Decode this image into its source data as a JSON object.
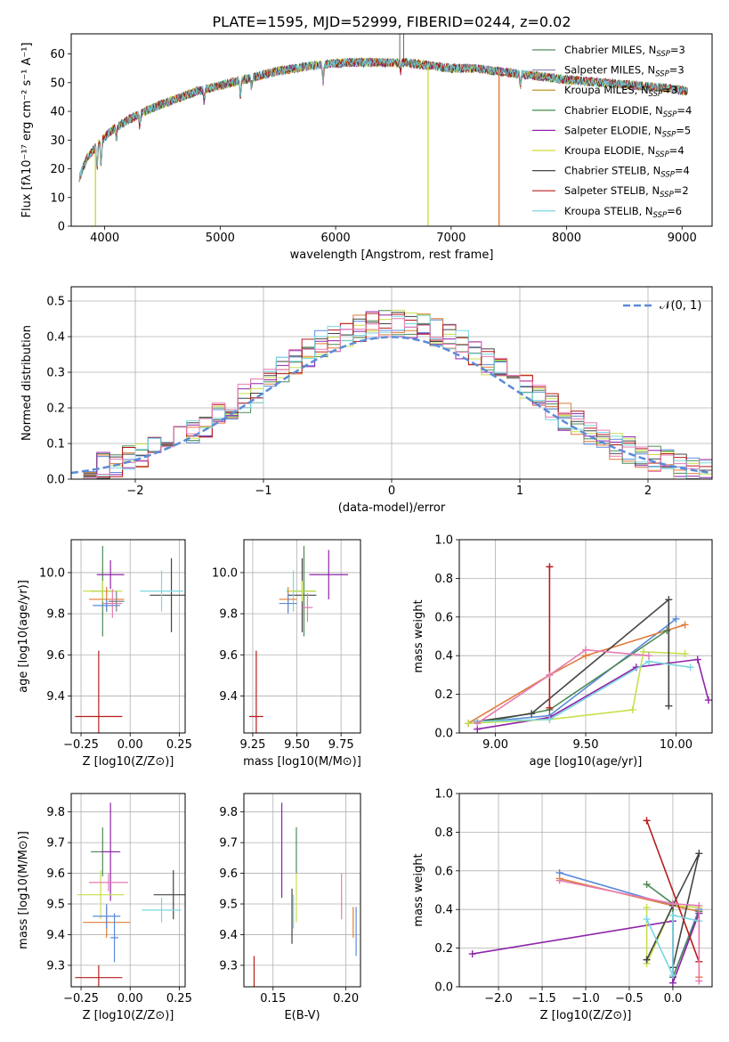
{
  "figure": {
    "title": "PLATE=1595, MJD=52999, FIBERID=0244, z=0.02"
  },
  "colors": {
    "cm": "#5B8A5B",
    "sm": "#8A8AB5",
    "km": "#B8860B",
    "ce": "#2E7D32",
    "se": "#8E24AA",
    "ke": "#CDDC39",
    "cs": "#444444",
    "ss": "#B71C1C",
    "ks": "#6FD0DC",
    "gauss": "#5B8BD9",
    "p_blue": "#5B8BD9",
    "p_orange": "#E07B39",
    "p_green": "#4E8A57",
    "p_purple": "#8E24AA",
    "p_lime": "#C6E04C",
    "p_dark": "#444444",
    "p_red": "#B71C1C",
    "p_cyan": "#7AD7E0",
    "p_pink": "#E57BB3",
    "p_gray": "#7F7F7F"
  },
  "chart_data": [
    {
      "id": "spectrum",
      "type": "line",
      "xlabel": "wavelength [Angstrom, rest frame]",
      "ylabel": "Flux [fλ10⁻¹⁷ erg cm⁻² s⁻¹ A⁻¹]",
      "xlim": [
        3710,
        9260
      ],
      "ylim": [
        0,
        67
      ],
      "xticks": [
        4000,
        5000,
        6000,
        7000,
        8000,
        9000
      ],
      "yticks": [
        0,
        10,
        20,
        30,
        40,
        50,
        60
      ],
      "continuum": [
        [
          3780,
          17
        ],
        [
          3850,
          24
        ],
        [
          3950,
          29
        ],
        [
          4050,
          33
        ],
        [
          4200,
          37
        ],
        [
          4400,
          41
        ],
        [
          4600,
          44
        ],
        [
          4800,
          47
        ],
        [
          5000,
          49
        ],
        [
          5200,
          51
        ],
        [
          5500,
          54
        ],
        [
          5800,
          56
        ],
        [
          6100,
          57
        ],
        [
          6400,
          57
        ],
        [
          6600,
          57
        ],
        [
          6800,
          56
        ],
        [
          7000,
          55
        ],
        [
          7200,
          55
        ],
        [
          7400,
          54
        ],
        [
          7600,
          53
        ],
        [
          7800,
          52
        ],
        [
          8000,
          51
        ],
        [
          8300,
          50
        ],
        [
          8600,
          49
        ],
        [
          8900,
          48
        ],
        [
          9050,
          47
        ]
      ],
      "absorption_lines": [
        [
          3934,
          8
        ],
        [
          3969,
          9
        ],
        [
          4101,
          4
        ],
        [
          4305,
          5
        ],
        [
          4861,
          4
        ],
        [
          5175,
          6
        ],
        [
          5270,
          3
        ],
        [
          5892,
          6
        ],
        [
          6563,
          3
        ],
        [
          7600,
          4
        ]
      ],
      "dropouts": [
        {
          "model": "Kroupa ELODIE",
          "x": 3920,
          "color_key": "ke"
        },
        {
          "model": "Kroupa ELODIE",
          "x": 6800,
          "color_key": "ke"
        },
        {
          "model": "Salpeter STELIB",
          "x": 7415,
          "color_key": "p_orange"
        }
      ],
      "spikes": [
        [
          6555,
          67
        ],
        [
          6590,
          67
        ]
      ],
      "series": [
        {
          "name": "Chabrier MILES, N_SSP=3",
          "label_main": "Chabrier MILES, N",
          "label_sub": "SSP",
          "label_tail": "=3",
          "color_key": "cm"
        },
        {
          "name": "Salpeter MILES, N_SSP=3",
          "label_main": "Salpeter MILES, N",
          "label_sub": "SSP",
          "label_tail": "=3",
          "color_key": "sm"
        },
        {
          "name": "Kroupa MILES, N_SSP=3",
          "label_main": "Kroupa MILES, N",
          "label_sub": "SSP",
          "label_tail": "=3",
          "color_key": "km"
        },
        {
          "name": "Chabrier ELODIE, N_SSP=4",
          "label_main": "Chabrier ELODIE, N",
          "label_sub": "SSP",
          "label_tail": "=4",
          "color_key": "ce"
        },
        {
          "name": "Salpeter ELODIE, N_SSP=5",
          "label_main": "Salpeter ELODIE, N",
          "label_sub": "SSP",
          "label_tail": "=5",
          "color_key": "se"
        },
        {
          "name": "Kroupa ELODIE, N_SSP=4",
          "label_main": "Kroupa ELODIE, N",
          "label_sub": "SSP",
          "label_tail": "=4",
          "color_key": "ke"
        },
        {
          "name": "Chabrier STELIB, N_SSP=4",
          "label_main": "Chabrier STELIB, N",
          "label_sub": "SSP",
          "label_tail": "=4",
          "color_key": "cs"
        },
        {
          "name": "Salpeter STELIB, N_SSP=2",
          "label_main": "Salpeter STELIB, N",
          "label_sub": "SSP",
          "label_tail": "=2",
          "color_key": "ss"
        },
        {
          "name": "Kroupa STELIB, N_SSP=6",
          "label_main": "Kroupa STELIB, N",
          "label_sub": "SSP",
          "label_tail": "=6",
          "color_key": "ks"
        }
      ]
    },
    {
      "id": "residuals",
      "type": "bar",
      "xlabel": "(data-model)/error",
      "ylabel": "Normed distribution",
      "xlim": [
        -2.5,
        2.5
      ],
      "ylim": [
        0,
        0.54
      ],
      "xticks": [
        -2,
        -1,
        0,
        1,
        2
      ],
      "yticks": [
        0.0,
        0.1,
        0.2,
        0.3,
        0.4,
        0.5
      ],
      "bin_width": 0.1,
      "gaussian_legend": "𝒩(0, 1)",
      "hist_colors": [
        "p_blue",
        "p_orange",
        "p_green",
        "p_purple",
        "p_lime",
        "p_dark",
        "p_red",
        "p_cyan",
        "p_pink"
      ]
    },
    {
      "id": "age_vs_Z",
      "type": "scatter",
      "xlabel": "Z [log10(Z/Z⊙)]",
      "ylabel": "age  [log10(age/yr)]",
      "xlim": [
        -0.3,
        0.28
      ],
      "ylim": [
        9.22,
        10.16
      ],
      "xticks": [
        -0.25,
        0.0,
        0.25
      ],
      "yticks": [
        9.4,
        9.6,
        9.8,
        10.0
      ],
      "errorbars": [
        {
          "x": -0.16,
          "y": 9.3,
          "xerr": 0.12,
          "yerr": 0.32,
          "color_key": "p_red"
        },
        {
          "x": 0.21,
          "y": 9.89,
          "xerr": 0.11,
          "yerr": 0.18,
          "color_key": "p_dark"
        },
        {
          "x": 0.16,
          "y": 9.91,
          "xerr": 0.11,
          "yerr": 0.1,
          "color_key": "p_cyan"
        },
        {
          "x": -0.14,
          "y": 9.91,
          "xerr": 0.06,
          "yerr": 0.22,
          "color_key": "p_green"
        },
        {
          "x": -0.1,
          "y": 9.99,
          "xerr": 0.07,
          "yerr": 0.07,
          "color_key": "p_purple"
        },
        {
          "x": -0.14,
          "y": 9.91,
          "xerr": 0.1,
          "yerr": 0.05,
          "color_key": "p_lime"
        },
        {
          "x": -0.12,
          "y": 9.87,
          "xerr": 0.09,
          "yerr": 0.06,
          "color_key": "p_orange"
        },
        {
          "x": -0.09,
          "y": 9.85,
          "xerr": 0.05,
          "yerr": 0.07,
          "color_key": "p_pink"
        },
        {
          "x": -0.12,
          "y": 9.84,
          "xerr": 0.07,
          "yerr": 0.03,
          "color_key": "p_blue"
        },
        {
          "x": -0.07,
          "y": 9.86,
          "xerr": 0.04,
          "yerr": 0.05,
          "color_key": "p_gray"
        }
      ]
    },
    {
      "id": "age_vs_mass",
      "type": "scatter",
      "xlabel": "mass [log10(M/M⊙)]",
      "ylabel": "",
      "xlim": [
        9.2,
        9.86
      ],
      "ylim": [
        9.22,
        10.16
      ],
      "xticks": [
        9.25,
        9.5,
        9.75
      ],
      "yticks": [
        9.4,
        9.6,
        9.8,
        10.0
      ],
      "errorbars": [
        {
          "x": 9.27,
          "y": 9.3,
          "xerr": 0.04,
          "yerr": 0.32,
          "color_key": "p_red"
        },
        {
          "x": 9.53,
          "y": 9.89,
          "xerr": 0.08,
          "yerr": 0.18,
          "color_key": "p_dark"
        },
        {
          "x": 9.48,
          "y": 9.91,
          "xerr": 0.04,
          "yerr": 0.1,
          "color_key": "p_cyan"
        },
        {
          "x": 9.54,
          "y": 9.91,
          "xerr": 0.06,
          "yerr": 0.22,
          "color_key": "p_green"
        },
        {
          "x": 9.68,
          "y": 9.99,
          "xerr": 0.11,
          "yerr": 0.12,
          "color_key": "p_purple"
        },
        {
          "x": 9.53,
          "y": 9.91,
          "xerr": 0.08,
          "yerr": 0.05,
          "color_key": "p_lime"
        },
        {
          "x": 9.45,
          "y": 9.87,
          "xerr": 0.05,
          "yerr": 0.06,
          "color_key": "p_orange"
        },
        {
          "x": 9.56,
          "y": 9.83,
          "xerr": 0.03,
          "yerr": 0.07,
          "color_key": "p_pink"
        },
        {
          "x": 9.45,
          "y": 9.85,
          "xerr": 0.05,
          "yerr": 0.05,
          "color_key": "p_blue"
        }
      ]
    },
    {
      "id": "weight_vs_age",
      "type": "line",
      "xlabel": "age  [log10(age/yr)]",
      "ylabel": "mass weight",
      "xlim": [
        8.8,
        10.2
      ],
      "ylim": [
        0,
        1
      ],
      "xticks": [
        9.0,
        9.5,
        10.0
      ],
      "yticks": [
        0.0,
        0.2,
        0.4,
        0.6,
        0.8,
        1.0
      ],
      "series": [
        {
          "color_key": "p_blue",
          "points": [
            [
              8.85,
              0.05
            ],
            [
              9.3,
              0.09
            ],
            [
              10.0,
              0.59
            ]
          ]
        },
        {
          "color_key": "p_orange",
          "points": [
            [
              8.85,
              0.05
            ],
            [
              9.3,
              0.3
            ],
            [
              9.5,
              0.4
            ],
            [
              10.05,
              0.56
            ]
          ]
        },
        {
          "color_key": "p_green",
          "points": [
            [
              8.9,
              0.05
            ],
            [
              9.3,
              0.12
            ],
            [
              9.95,
              0.53
            ]
          ]
        },
        {
          "color_key": "p_purple",
          "points": [
            [
              8.9,
              0.02
            ],
            [
              9.3,
              0.08
            ],
            [
              9.78,
              0.34
            ],
            [
              10.12,
              0.38
            ],
            [
              10.18,
              0.17
            ]
          ]
        },
        {
          "color_key": "p_lime",
          "points": [
            [
              8.85,
              0.05
            ],
            [
              9.3,
              0.07
            ],
            [
              9.76,
              0.12
            ],
            [
              9.82,
              0.42
            ],
            [
              10.05,
              0.41
            ]
          ]
        },
        {
          "color_key": "p_dark",
          "points": [
            [
              8.9,
              0.06
            ],
            [
              9.2,
              0.1
            ],
            [
              9.96,
              0.69
            ],
            [
              9.96,
              0.14
            ]
          ]
        },
        {
          "color_key": "p_red",
          "points": [
            [
              9.3,
              0.86
            ],
            [
              9.3,
              0.13
            ]
          ]
        },
        {
          "color_key": "p_cyan",
          "points": [
            [
              8.9,
              0.06
            ],
            [
              9.3,
              0.07
            ],
            [
              9.85,
              0.37
            ],
            [
              10.08,
              0.34
            ]
          ]
        },
        {
          "color_key": "p_pink",
          "points": [
            [
              8.9,
              0.05
            ],
            [
              9.3,
              0.3
            ],
            [
              9.5,
              0.43
            ],
            [
              9.85,
              0.4
            ]
          ]
        }
      ]
    },
    {
      "id": "mass_vs_Z",
      "type": "scatter",
      "xlabel": "Z [log10(Z/Z⊙)]",
      "ylabel": "mass [log10(M/M⊙)]",
      "xlim": [
        -0.3,
        0.28
      ],
      "ylim": [
        9.23,
        9.86
      ],
      "xticks": [
        -0.25,
        0.0,
        0.25
      ],
      "yticks": [
        9.3,
        9.4,
        9.5,
        9.6,
        9.7,
        9.8
      ],
      "errorbars": [
        {
          "x": -0.16,
          "y": 9.26,
          "xerr": 0.12,
          "yerr": 0.04,
          "color_key": "p_red"
        },
        {
          "x": 0.22,
          "y": 9.53,
          "xerr": 0.1,
          "yerr": 0.08,
          "color_key": "p_dark"
        },
        {
          "x": 0.16,
          "y": 9.48,
          "xerr": 0.1,
          "yerr": 0.04,
          "color_key": "p_cyan"
        },
        {
          "x": -0.14,
          "y": 9.67,
          "xerr": 0.06,
          "yerr": 0.08,
          "color_key": "p_green"
        },
        {
          "x": -0.1,
          "y": 9.67,
          "xerr": 0.05,
          "yerr": 0.16,
          "color_key": "p_purple"
        },
        {
          "x": -0.15,
          "y": 9.53,
          "xerr": 0.12,
          "yerr": 0.08,
          "color_key": "p_lime"
        },
        {
          "x": -0.12,
          "y": 9.44,
          "xerr": 0.12,
          "yerr": 0.05,
          "color_key": "p_orange"
        },
        {
          "x": -0.11,
          "y": 9.57,
          "xerr": 0.1,
          "yerr": 0.03,
          "color_key": "p_pink"
        },
        {
          "x": -0.12,
          "y": 9.46,
          "xerr": 0.07,
          "yerr": 0.04,
          "color_key": "p_blue"
        },
        {
          "x": -0.08,
          "y": 9.39,
          "xerr": 0.02,
          "yerr": 0.08,
          "color_key": "p_blue"
        }
      ]
    },
    {
      "id": "mass_vs_ebv",
      "type": "scatter",
      "xlabel": "E(B-V)",
      "ylabel": "",
      "xlim": [
        0.13,
        0.21
      ],
      "ylim": [
        9.23,
        9.86
      ],
      "xticks": [
        0.15,
        0.2
      ],
      "yticks": [
        9.3,
        9.4,
        9.5,
        9.6,
        9.7,
        9.8
      ],
      "vlines": [
        {
          "x": 0.137,
          "y0": 9.23,
          "y1": 9.33,
          "color_key": "p_red"
        },
        {
          "x": 0.156,
          "y0": 9.52,
          "y1": 9.83,
          "color_key": "p_purple"
        },
        {
          "x": 0.163,
          "y0": 9.37,
          "y1": 9.55,
          "color_key": "p_dark"
        },
        {
          "x": 0.164,
          "y0": 9.42,
          "y1": 9.53,
          "color_key": "p_cyan"
        },
        {
          "x": 0.166,
          "y0": 9.6,
          "y1": 9.75,
          "color_key": "p_green"
        },
        {
          "x": 0.166,
          "y0": 9.44,
          "y1": 9.6,
          "color_key": "p_lime"
        },
        {
          "x": 0.197,
          "y0": 9.45,
          "y1": 9.6,
          "color_key": "p_pink"
        },
        {
          "x": 0.205,
          "y0": 9.39,
          "y1": 9.49,
          "color_key": "p_orange"
        },
        {
          "x": 0.207,
          "y0": 9.33,
          "y1": 9.49,
          "color_key": "p_blue"
        }
      ]
    },
    {
      "id": "weight_vs_Z",
      "type": "line",
      "xlabel": "Z [log10(Z/Z⊙)]",
      "ylabel": "mass weight",
      "xlim": [
        -2.45,
        0.45
      ],
      "ylim": [
        0,
        1
      ],
      "xticks": [
        -2.0,
        -1.5,
        -1.0,
        -0.5,
        0.0
      ],
      "yticks": [
        0.0,
        0.2,
        0.4,
        0.6,
        0.8,
        1.0
      ],
      "series": [
        {
          "color_key": "p_blue",
          "points": [
            [
              -1.3,
              0.59
            ],
            [
              0.0,
              0.42
            ],
            [
              0.0,
              0.05
            ],
            [
              0.3,
              0.4
            ]
          ]
        },
        {
          "color_key": "p_orange",
          "points": [
            [
              -1.3,
              0.56
            ],
            [
              0.0,
              0.42
            ],
            [
              0.3,
              0.39
            ],
            [
              0.3,
              0.05
            ]
          ]
        },
        {
          "color_key": "p_green",
          "points": [
            [
              -0.3,
              0.53
            ],
            [
              0.0,
              0.43
            ],
            [
              0.0,
              0.05
            ],
            [
              0.3,
              0.39
            ]
          ]
        },
        {
          "color_key": "p_purple",
          "points": [
            [
              -2.3,
              0.17
            ],
            [
              0.0,
              0.34
            ],
            [
              0.0,
              0.02
            ],
            [
              0.3,
              0.38
            ]
          ]
        },
        {
          "color_key": "p_lime",
          "points": [
            [
              -0.3,
              0.41
            ],
            [
              -0.3,
              0.12
            ],
            [
              0.0,
              0.42
            ],
            [
              0.3,
              0.41
            ]
          ]
        },
        {
          "color_key": "p_dark",
          "points": [
            [
              -0.3,
              0.14
            ],
            [
              0.0,
              0.42
            ],
            [
              0.3,
              0.69
            ],
            [
              0.0,
              0.1
            ]
          ]
        },
        {
          "color_key": "p_red",
          "points": [
            [
              -0.3,
              0.86
            ],
            [
              0.3,
              0.13
            ]
          ]
        },
        {
          "color_key": "p_cyan",
          "points": [
            [
              -0.3,
              0.35
            ],
            [
              0.0,
              0.06
            ],
            [
              0.0,
              0.37
            ],
            [
              0.3,
              0.34
            ]
          ]
        },
        {
          "color_key": "p_pink",
          "points": [
            [
              -1.3,
              0.55
            ],
            [
              0.0,
              0.43
            ],
            [
              0.3,
              0.42
            ],
            [
              0.3,
              0.03
            ]
          ]
        }
      ]
    }
  ]
}
